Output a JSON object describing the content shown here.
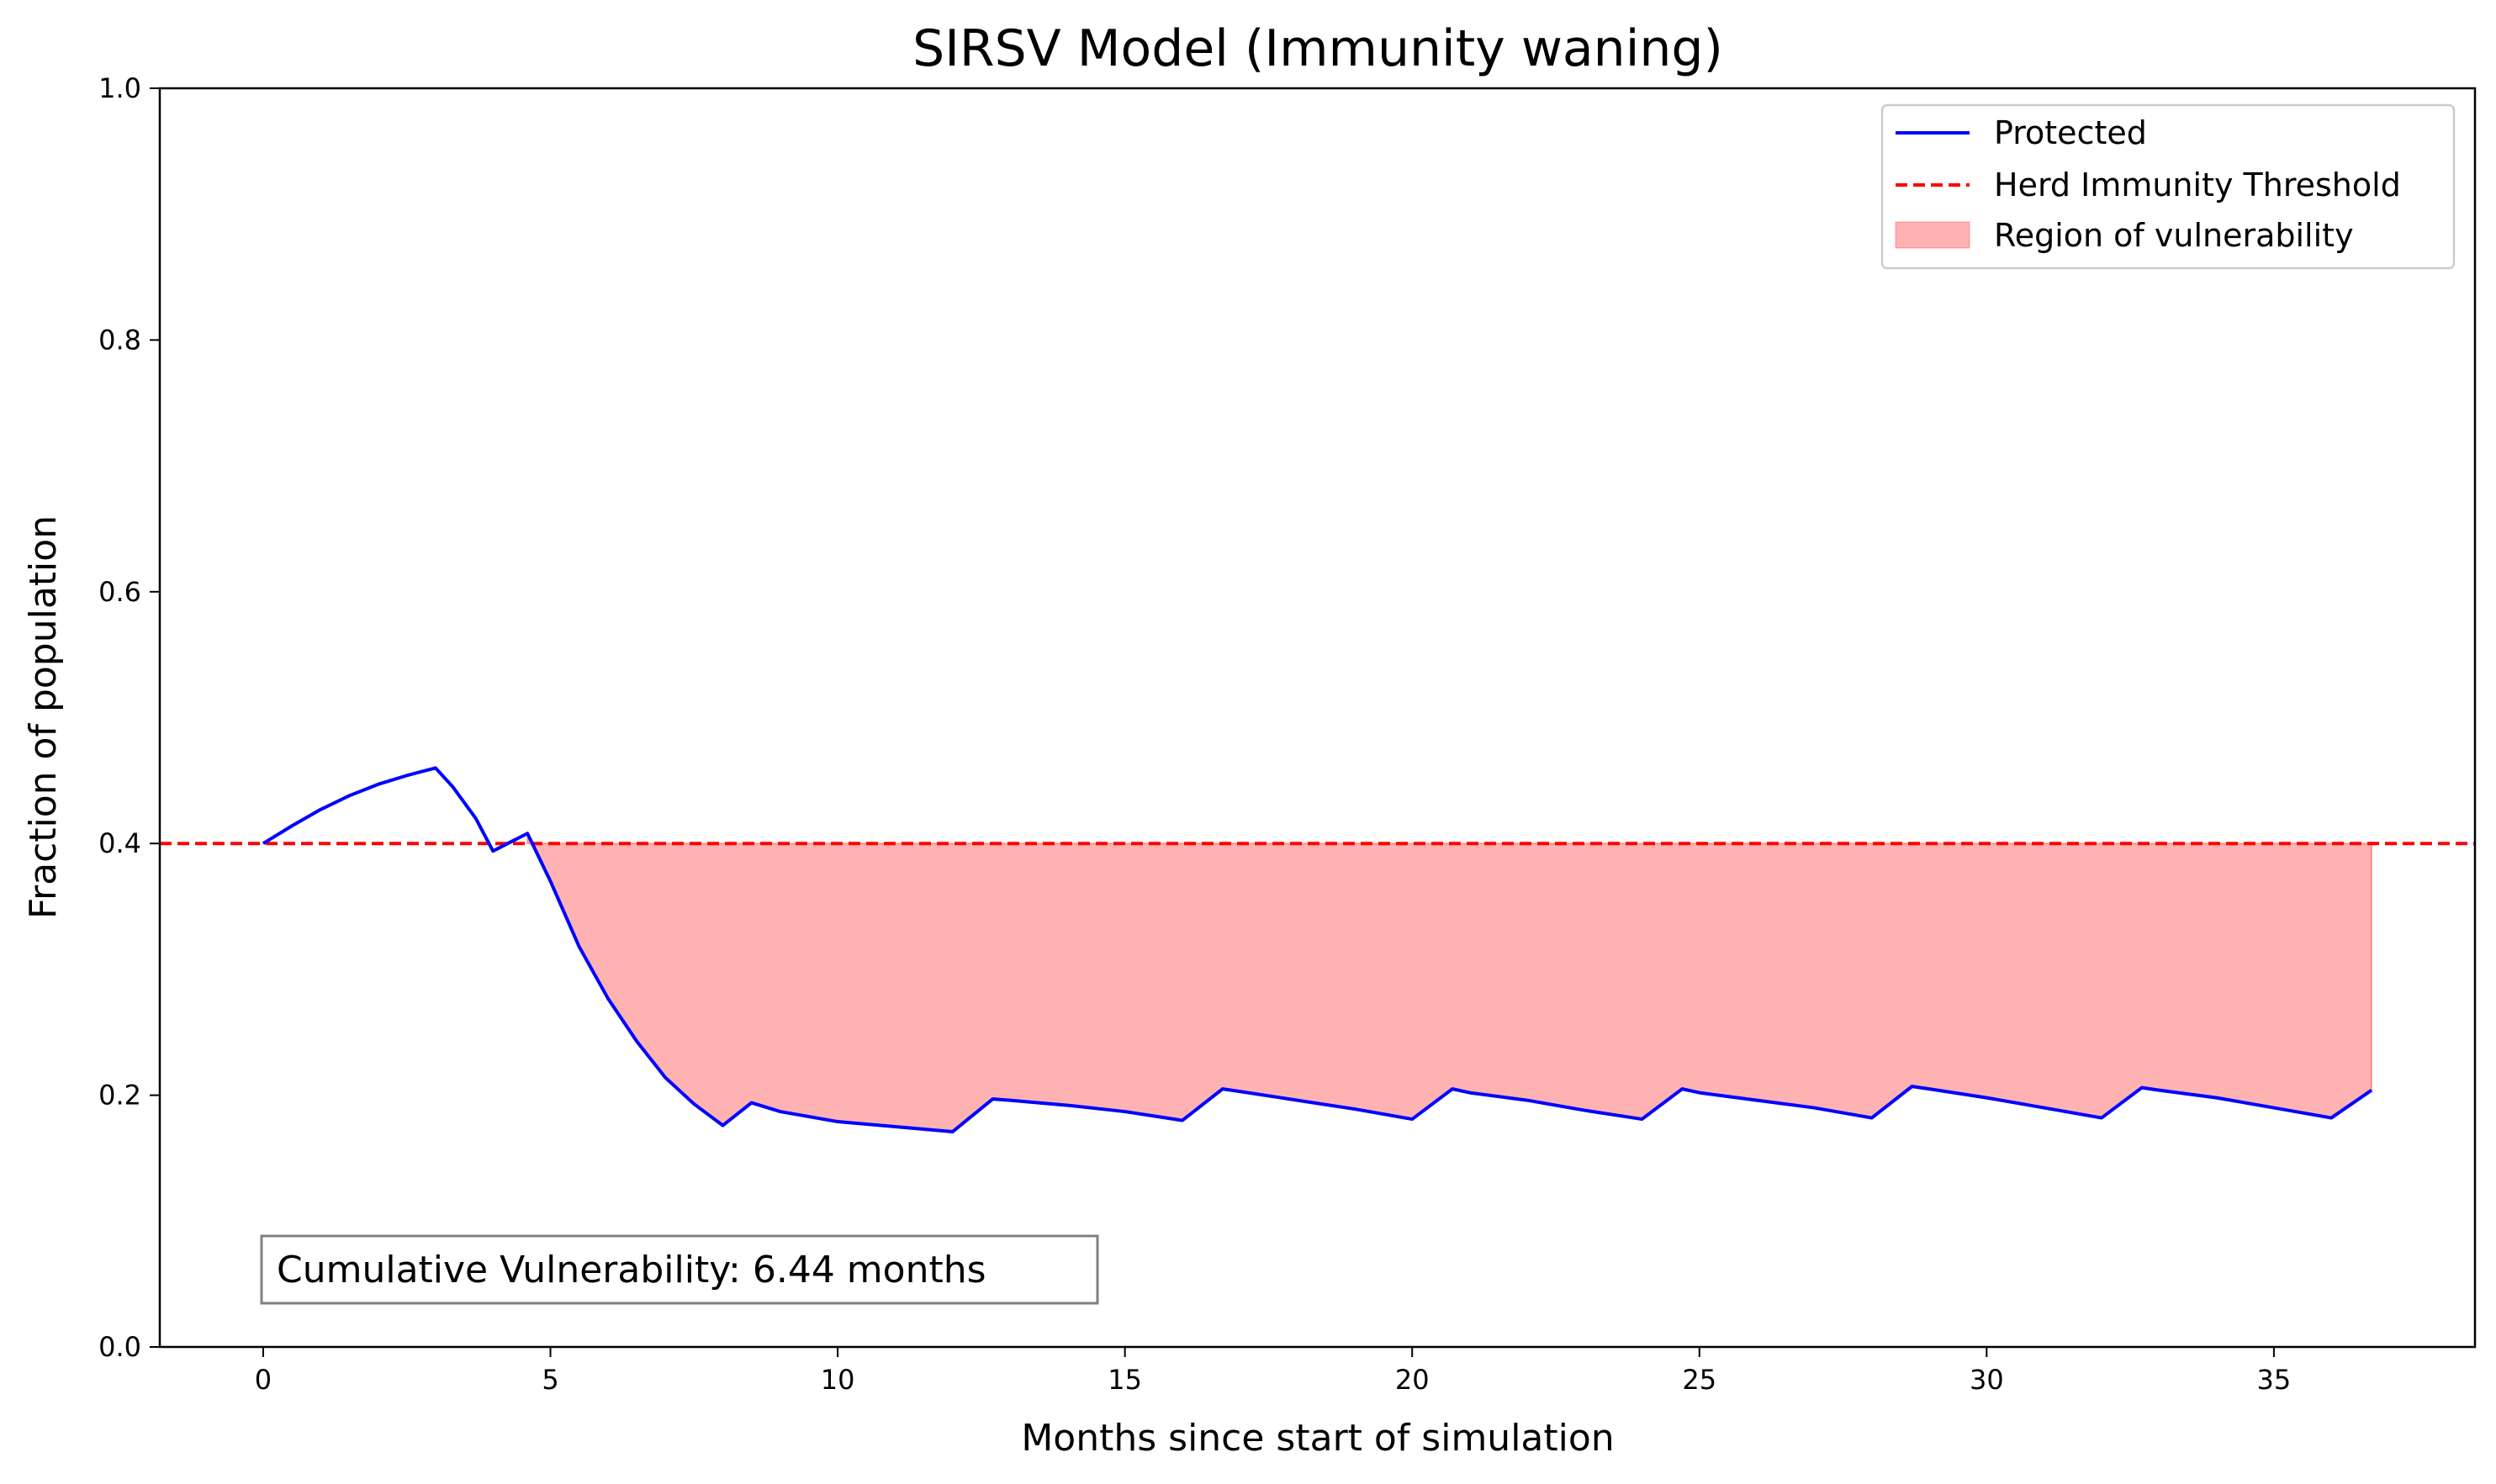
{
  "chart_data": {
    "type": "line",
    "title": "SIRSV Model (Immunity waning)",
    "xlabel": "Months since start of simulation",
    "ylabel": "Fraction of population",
    "xlim": [
      -1.8,
      38.5
    ],
    "ylim": [
      0.0,
      1.0
    ],
    "xticks": [
      0,
      5,
      10,
      15,
      20,
      25,
      30,
      35
    ],
    "yticks": [
      0.0,
      0.2,
      0.4,
      0.6,
      0.8,
      1.0
    ],
    "grid": false,
    "legend_position": "top-right",
    "legend": [
      "Protected",
      "Herd Immunity Threshold",
      "Region of vulnerability"
    ],
    "series": [
      {
        "name": "Protected",
        "color": "#0000ff",
        "x": [
          0,
          0.5,
          1,
          1.5,
          2,
          2.5,
          3,
          3.3,
          3.7,
          4,
          4.3,
          4.6,
          5,
          5.5,
          6,
          6.5,
          7,
          7.5,
          8,
          8.5,
          9,
          10,
          11,
          12,
          12.7,
          13,
          14,
          15,
          16,
          16.7,
          17,
          18,
          19,
          20,
          20.7,
          21,
          22,
          23,
          24,
          24.7,
          25,
          26,
          27,
          28,
          28.7,
          29,
          30,
          31,
          32,
          32.7,
          33,
          34,
          35,
          36,
          36.7
        ],
        "y": [
          0.4,
          0.414,
          0.427,
          0.438,
          0.447,
          0.454,
          0.46,
          0.445,
          0.42,
          0.394,
          0.401,
          0.408,
          0.37,
          0.318,
          0.277,
          0.243,
          0.214,
          0.193,
          0.176,
          0.194,
          0.187,
          0.179,
          0.175,
          0.171,
          0.197,
          0.196,
          0.192,
          0.187,
          0.18,
          0.205,
          0.203,
          0.196,
          0.189,
          0.181,
          0.205,
          0.202,
          0.196,
          0.188,
          0.181,
          0.205,
          0.202,
          0.196,
          0.19,
          0.182,
          0.207,
          0.205,
          0.198,
          0.19,
          0.182,
          0.206,
          0.204,
          0.198,
          0.19,
          0.182,
          0.204
        ]
      },
      {
        "name": "Herd Immunity Threshold",
        "color": "#ff0000",
        "style": "dashed",
        "y": 0.4
      }
    ],
    "fill": {
      "name": "Region of vulnerability",
      "color": "#ff0000",
      "opacity": 0.3,
      "x_start": 4.6,
      "x_end": 36.7,
      "upper": 0.4
    },
    "annotation": {
      "text": "Cumulative Vulnerability: 6.44 months"
    }
  }
}
